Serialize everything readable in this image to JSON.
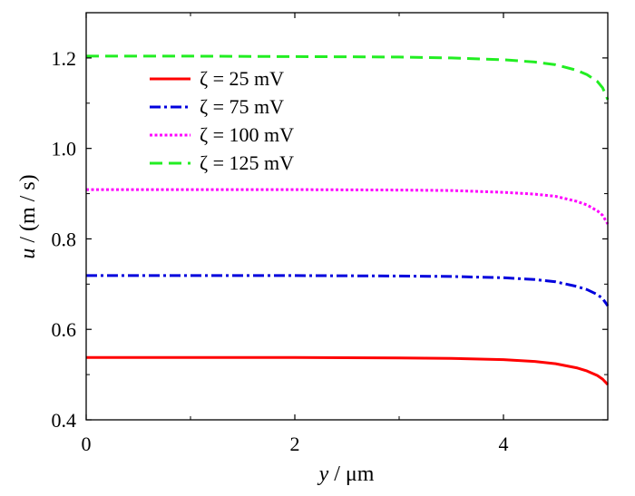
{
  "chart_data": {
    "type": "line",
    "xlabel": {
      "var": "y",
      "unit": " / μm"
    },
    "ylabel": {
      "var": "u",
      "unit": " / (m / s)"
    },
    "xlim": [
      0,
      5
    ],
    "ylim": [
      0.4,
      1.3
    ],
    "x_ticks": [
      0,
      2,
      4
    ],
    "x_minor_ticks": [
      1,
      3,
      5
    ],
    "y_ticks": [
      0.4,
      0.6,
      0.8,
      1.0,
      1.2
    ],
    "y_tick_labels": [
      "0.4",
      "0.6",
      "0.8",
      "1.0",
      "1.2"
    ],
    "y_minor_ticks": [
      0.5,
      0.7,
      0.9,
      1.1,
      1.3
    ],
    "grid": false,
    "legend_position": "top-left",
    "series": [
      {
        "name": "ζ = 25 mV",
        "color": "#ff0000",
        "style": "solid",
        "x": [
          0,
          1,
          2,
          3,
          3.5,
          4,
          4.3,
          4.5,
          4.7,
          4.8,
          4.9,
          4.95,
          5.0
        ],
        "y": [
          0.538,
          0.538,
          0.538,
          0.537,
          0.536,
          0.533,
          0.529,
          0.524,
          0.515,
          0.508,
          0.498,
          0.49,
          0.478
        ]
      },
      {
        "name": "ζ = 75 mV",
        "color": "#0000dd",
        "style": "dashdot",
        "x": [
          0,
          1,
          2,
          3,
          3.5,
          4,
          4.3,
          4.5,
          4.7,
          4.8,
          4.9,
          4.95,
          5.0
        ],
        "y": [
          0.719,
          0.719,
          0.719,
          0.718,
          0.717,
          0.714,
          0.71,
          0.705,
          0.695,
          0.688,
          0.677,
          0.668,
          0.652
        ]
      },
      {
        "name": "ζ = 100 mV",
        "color": "#ff00ff",
        "style": "dotted",
        "x": [
          0,
          1,
          2,
          3,
          3.5,
          4,
          4.3,
          4.5,
          4.7,
          4.8,
          4.9,
          4.95,
          5.0
        ],
        "y": [
          0.909,
          0.909,
          0.909,
          0.908,
          0.907,
          0.903,
          0.899,
          0.894,
          0.883,
          0.875,
          0.862,
          0.852,
          0.833
        ]
      },
      {
        "name": "ζ = 125 mV",
        "color": "#22ee22",
        "style": "dashed",
        "x": [
          0,
          1,
          2,
          3,
          3.5,
          4,
          4.3,
          4.5,
          4.7,
          4.8,
          4.9,
          4.95,
          5.0
        ],
        "y": [
          1.204,
          1.204,
          1.203,
          1.202,
          1.2,
          1.196,
          1.191,
          1.185,
          1.173,
          1.163,
          1.148,
          1.134,
          1.108
        ]
      }
    ]
  }
}
